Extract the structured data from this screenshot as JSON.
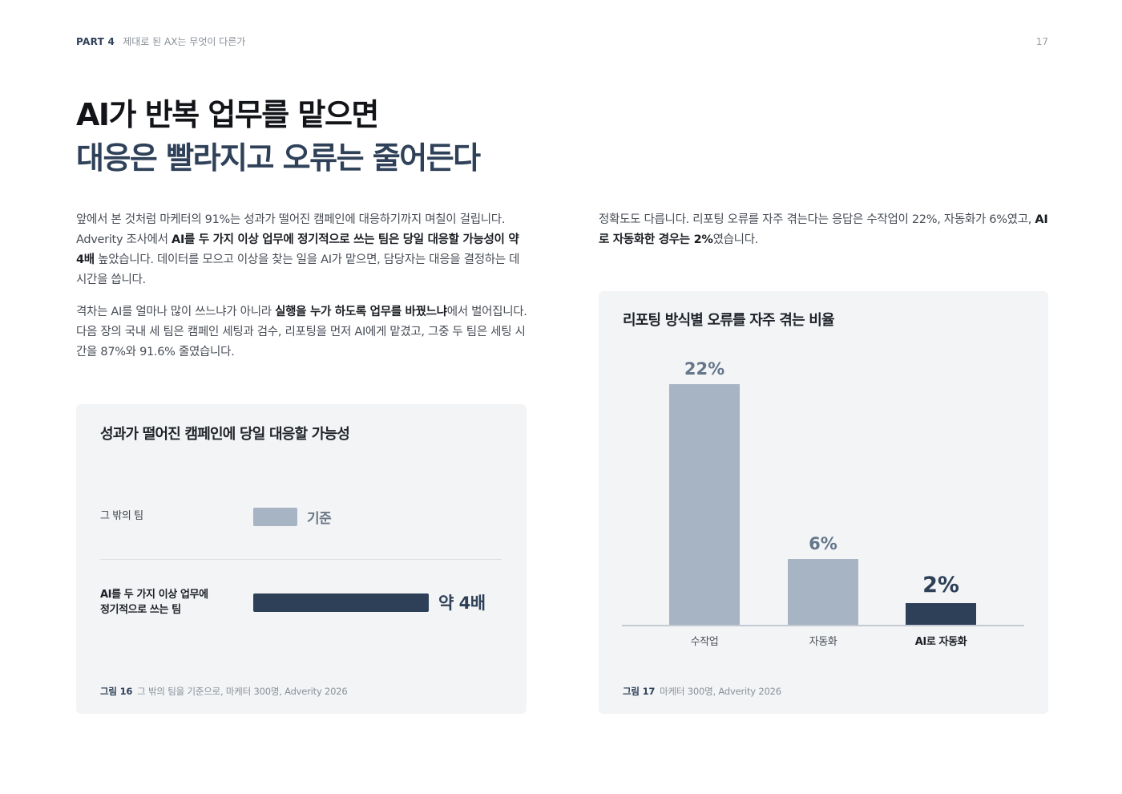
{
  "header": {
    "part": "PART 4",
    "section": "제대로 된 AX는 무엇이 다른가",
    "page_number": "17"
  },
  "title": {
    "line1": "AI가 반복 업무를 맡으면",
    "line2": "대응은 빨라지고 오류는 줄어든다"
  },
  "left_column": {
    "p1": [
      {
        "text": "앞에서 본 것처럼 마케터의 91%는 성과가 떨어진 캠페인에 대응하기까지 며칠이 걸립니다. Adverity 조사에서 ",
        "bold": false
      },
      {
        "text": "AI를 두 가지 이상 업무에 정기적으로 쓰는 팀은 당일 대응할 가능성이 약 4배",
        "bold": true
      },
      {
        "text": " 높았습니다. 데이터를 모으고 이상을 찾는 일을 AI가 맡으면, 담당자는 대응을 결정하는 데 시간을 씁니다.",
        "bold": false
      }
    ],
    "p2": [
      {
        "text": "격차는 AI를 얼마나 많이 쓰느냐가 아니라 ",
        "bold": false
      },
      {
        "text": "실행을 누가 하도록 업무를 바꿨느냐",
        "bold": true
      },
      {
        "text": "에서 벌어집니다. 다음 장의 국내 세 팀은 캠페인 세팅과 검수, 리포팅을 먼저 AI에게 맡겼고, 그중 두 팀은 세팅 시간을 87%와 91.6% 줄였습니다.",
        "bold": false
      }
    ]
  },
  "right_column": {
    "p1": [
      {
        "text": "정확도도 다릅니다. 리포팅 오류를 자주 겪는다는 응답은 수작업이 22%, 자동화가 6%였고, ",
        "bold": false
      },
      {
        "text": "AI로 자동화한 경우는 2%",
        "bold": true
      },
      {
        "text": "였습니다.",
        "bold": false
      }
    ]
  },
  "figure16": {
    "title": "성과가 떨어진 캠페인에 당일 대응할 가능성",
    "caption_label": "그림 16",
    "caption_text": "그 밖의 팀을 기준으로, 마케터 300명, Adverity 2026",
    "rows": [
      {
        "label": "그 밖의 팀",
        "value_label": "기준"
      },
      {
        "label_line1": "AI를 두 가지 이상 업무에",
        "label_line2": "정기적으로 쓰는 팀",
        "value_label": "약 4배"
      }
    ]
  },
  "figure17": {
    "title": "리포팅 방식별 오류를 자주 겪는 비율",
    "caption_label": "그림 17",
    "caption_text": "마케터 300명, Adverity 2026"
  },
  "chart_data": [
    {
      "type": "bar",
      "orientation": "horizontal",
      "title": "성과가 떨어진 캠페인에 당일 대응할 가능성",
      "categories": [
        "그 밖의 팀",
        "AI를 두 가지 이상 업무에 정기적으로 쓰는 팀"
      ],
      "values": [
        1,
        4
      ],
      "data_labels": [
        "기준",
        "약 4배"
      ],
      "colors": [
        "#a7b4c3",
        "#2e4058"
      ],
      "grid": false
    },
    {
      "type": "bar",
      "orientation": "vertical",
      "title": "리포팅 방식별 오류를 자주 겪는 비율",
      "categories": [
        "수작업",
        "자동화",
        "AI로 자동화"
      ],
      "values": [
        22,
        6,
        2
      ],
      "data_labels": [
        "22%",
        "6%",
        "2%"
      ],
      "colors": [
        "#a7b4c3",
        "#a7b4c3",
        "#2e4058"
      ],
      "ylim": [
        0,
        22
      ],
      "grid": false
    }
  ]
}
